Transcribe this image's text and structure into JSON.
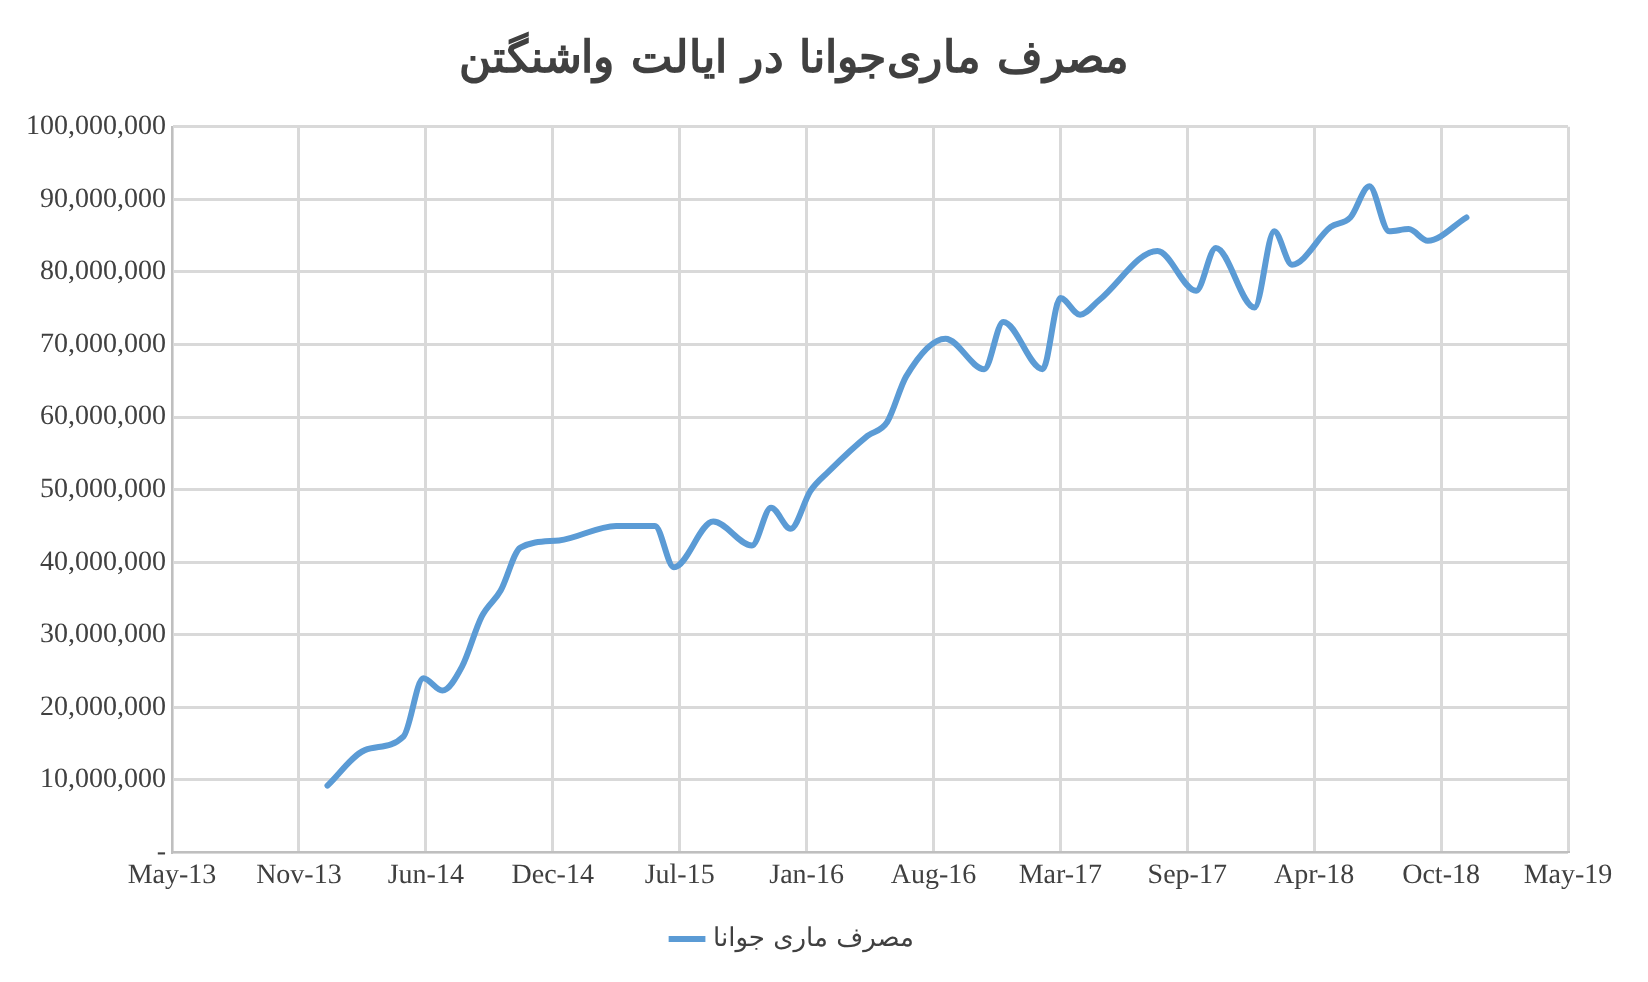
{
  "chart_data": {
    "type": "line",
    "title": "مصرف ماری‌جوانا در ایالت واشنگتن",
    "x": [
      "2014-01",
      "2014-03",
      "2014-05",
      "2014-06",
      "2014-07",
      "2014-08",
      "2014-09",
      "2014-10",
      "2014-11",
      "2015-01",
      "2015-04",
      "2015-06",
      "2015-07",
      "2015-09",
      "2015-11",
      "2015-12",
      "2016-01",
      "2016-02",
      "2016-03",
      "2016-05",
      "2016-06",
      "2016-07",
      "2016-09",
      "2016-11",
      "2016-12",
      "2017-02",
      "2017-03",
      "2017-04",
      "2017-05",
      "2017-08",
      "2017-10",
      "2017-11",
      "2018-01",
      "2018-02",
      "2018-03",
      "2018-05",
      "2018-06",
      "2018-07",
      "2018-08",
      "2018-09",
      "2018-10",
      "2018-12"
    ],
    "series": [
      {
        "name": "مصرف ماری جوانا",
        "color": "#5b9bd5",
        "values": [
          9200000,
          14100000,
          16000000,
          24000000,
          22300000,
          25600000,
          32500000,
          36100000,
          42000000,
          43000000,
          45000000,
          45000000,
          39300000,
          45600000,
          42300000,
          47500000,
          44600000,
          49800000,
          52500000,
          57400000,
          59300000,
          65600000,
          70800000,
          66600000,
          73100000,
          66600000,
          76400000,
          74100000,
          76100000,
          82900000,
          77400000,
          83300000,
          75100000,
          85600000,
          81000000,
          86200000,
          87500000,
          91800000,
          85600000,
          85900000,
          84300000,
          87500000
        ]
      }
    ],
    "xlim": [
      "2013-05-01",
      "2019-05-10"
    ],
    "xticks": [
      {
        "value": "2013-05-01",
        "label": "May-13"
      },
      {
        "value": "2013-11-17",
        "label": "Nov-13"
      },
      {
        "value": "2014-06-05",
        "label": "Jun-14"
      },
      {
        "value": "2014-12-22",
        "label": "Dec-14"
      },
      {
        "value": "2015-07-10",
        "label": "Jul-15"
      },
      {
        "value": "2016-01-26",
        "label": "Jan-16"
      },
      {
        "value": "2016-08-13",
        "label": "Aug-16"
      },
      {
        "value": "2017-03-01",
        "label": "Mar-17"
      },
      {
        "value": "2017-09-17",
        "label": "Sep-17"
      },
      {
        "value": "2018-04-05",
        "label": "Apr-18"
      },
      {
        "value": "2018-10-22",
        "label": "Oct-18"
      },
      {
        "value": "2019-05-10",
        "label": "May-19"
      }
    ],
    "ylim": [
      0,
      100000000
    ],
    "yticks": [
      {
        "value": 0,
        "label": "-"
      },
      {
        "value": 10000000,
        "label": "10,000,000"
      },
      {
        "value": 20000000,
        "label": "20,000,000"
      },
      {
        "value": 30000000,
        "label": "30,000,000"
      },
      {
        "value": 40000000,
        "label": "40,000,000"
      },
      {
        "value": 50000000,
        "label": "50,000,000"
      },
      {
        "value": 60000000,
        "label": "60,000,000"
      },
      {
        "value": 70000000,
        "label": "70,000,000"
      },
      {
        "value": 80000000,
        "label": "80,000,000"
      },
      {
        "value": 90000000,
        "label": "90,000,000"
      },
      {
        "value": 100000000,
        "label": "100,000,000"
      }
    ],
    "grid": true,
    "legend": "bottom",
    "marker": "none",
    "line_style": "solid"
  }
}
